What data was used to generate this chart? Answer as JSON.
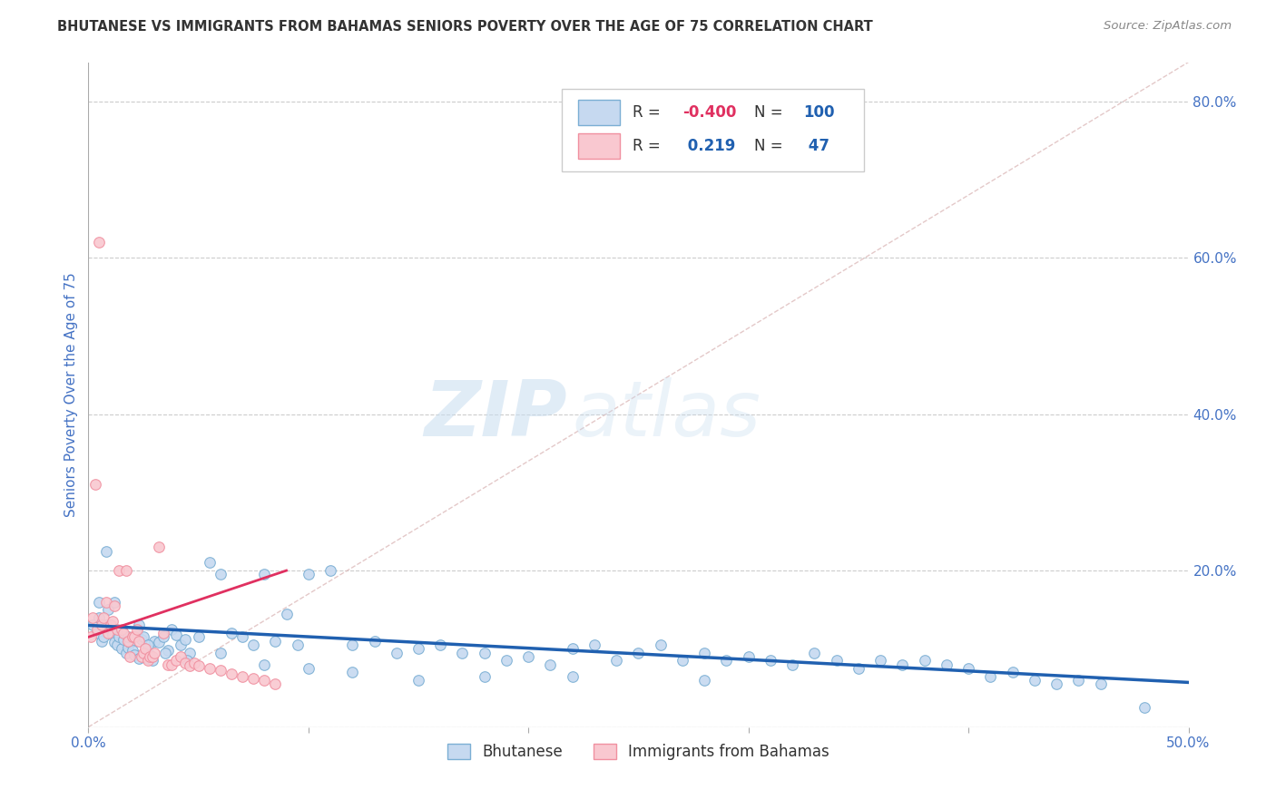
{
  "title": "BHUTANESE VS IMMIGRANTS FROM BAHAMAS SENIORS POVERTY OVER THE AGE OF 75 CORRELATION CHART",
  "source": "Source: ZipAtlas.com",
  "ylabel": "Seniors Poverty Over the Age of 75",
  "xlim": [
    0.0,
    0.5
  ],
  "ylim": [
    0.0,
    0.85
  ],
  "xticks": [
    0.0,
    0.1,
    0.2,
    0.3,
    0.4,
    0.5
  ],
  "yticks_right": [
    0.0,
    0.2,
    0.4,
    0.6,
    0.8
  ],
  "ytick_labels_right": [
    "",
    "20.0%",
    "40.0%",
    "60.0%",
    "80.0%"
  ],
  "xtick_labels": [
    "0.0%",
    "",
    "",
    "",
    "",
    "50.0%"
  ],
  "legend_blue_label": "Bhutanese",
  "legend_pink_label": "Immigrants from Bahamas",
  "R_blue": -0.4,
  "N_blue": 100,
  "R_pink": 0.219,
  "N_pink": 47,
  "watermark_zip": "ZIP",
  "watermark_atlas": "atlas",
  "background_color": "#ffffff",
  "blue_scatter_x": [
    0.002,
    0.004,
    0.005,
    0.006,
    0.007,
    0.008,
    0.009,
    0.01,
    0.011,
    0.012,
    0.013,
    0.014,
    0.015,
    0.016,
    0.017,
    0.018,
    0.019,
    0.02,
    0.021,
    0.022,
    0.023,
    0.024,
    0.025,
    0.026,
    0.027,
    0.028,
    0.029,
    0.03,
    0.032,
    0.034,
    0.036,
    0.038,
    0.04,
    0.042,
    0.044,
    0.046,
    0.05,
    0.055,
    0.06,
    0.065,
    0.07,
    0.075,
    0.08,
    0.085,
    0.09,
    0.095,
    0.1,
    0.11,
    0.12,
    0.13,
    0.14,
    0.15,
    0.16,
    0.17,
    0.18,
    0.19,
    0.2,
    0.21,
    0.22,
    0.23,
    0.24,
    0.25,
    0.26,
    0.27,
    0.28,
    0.29,
    0.3,
    0.31,
    0.32,
    0.33,
    0.34,
    0.35,
    0.36,
    0.37,
    0.38,
    0.39,
    0.4,
    0.41,
    0.42,
    0.43,
    0.44,
    0.45,
    0.46,
    0.005,
    0.008,
    0.012,
    0.018,
    0.023,
    0.027,
    0.035,
    0.045,
    0.06,
    0.08,
    0.1,
    0.12,
    0.15,
    0.18,
    0.22,
    0.28,
    0.48
  ],
  "blue_scatter_y": [
    0.13,
    0.12,
    0.14,
    0.11,
    0.115,
    0.13,
    0.15,
    0.125,
    0.118,
    0.108,
    0.105,
    0.115,
    0.1,
    0.112,
    0.095,
    0.102,
    0.108,
    0.098,
    0.092,
    0.118,
    0.088,
    0.112,
    0.115,
    0.095,
    0.088,
    0.092,
    0.085,
    0.11,
    0.108,
    0.115,
    0.098,
    0.125,
    0.118,
    0.105,
    0.112,
    0.095,
    0.115,
    0.21,
    0.195,
    0.12,
    0.115,
    0.105,
    0.195,
    0.11,
    0.145,
    0.105,
    0.195,
    0.2,
    0.105,
    0.11,
    0.095,
    0.1,
    0.105,
    0.095,
    0.095,
    0.085,
    0.09,
    0.08,
    0.1,
    0.105,
    0.085,
    0.095,
    0.105,
    0.085,
    0.095,
    0.085,
    0.09,
    0.085,
    0.08,
    0.095,
    0.085,
    0.075,
    0.085,
    0.08,
    0.085,
    0.08,
    0.075,
    0.065,
    0.07,
    0.06,
    0.055,
    0.06,
    0.055,
    0.16,
    0.225,
    0.16,
    0.115,
    0.13,
    0.105,
    0.095,
    0.085,
    0.095,
    0.08,
    0.075,
    0.07,
    0.06,
    0.065,
    0.065,
    0.06,
    0.025
  ],
  "pink_scatter_x": [
    0.001,
    0.002,
    0.003,
    0.004,
    0.005,
    0.006,
    0.007,
    0.008,
    0.009,
    0.01,
    0.011,
    0.012,
    0.013,
    0.014,
    0.015,
    0.016,
    0.017,
    0.018,
    0.019,
    0.02,
    0.021,
    0.022,
    0.023,
    0.024,
    0.025,
    0.026,
    0.027,
    0.028,
    0.029,
    0.03,
    0.032,
    0.034,
    0.036,
    0.038,
    0.04,
    0.042,
    0.044,
    0.046,
    0.048,
    0.05,
    0.055,
    0.06,
    0.065,
    0.07,
    0.075,
    0.08,
    0.085
  ],
  "pink_scatter_y": [
    0.115,
    0.14,
    0.31,
    0.125,
    0.62,
    0.13,
    0.14,
    0.16,
    0.12,
    0.13,
    0.135,
    0.155,
    0.125,
    0.2,
    0.125,
    0.12,
    0.2,
    0.11,
    0.09,
    0.115,
    0.115,
    0.125,
    0.11,
    0.09,
    0.095,
    0.1,
    0.085,
    0.09,
    0.09,
    0.095,
    0.23,
    0.12,
    0.08,
    0.08,
    0.085,
    0.09,
    0.082,
    0.078,
    0.082,
    0.078,
    0.075,
    0.072,
    0.068,
    0.065,
    0.062,
    0.06,
    0.055
  ],
  "blue_line_x": [
    0.0,
    0.5
  ],
  "blue_line_y": [
    0.13,
    0.057
  ],
  "pink_line_x": [
    0.0,
    0.09
  ],
  "pink_line_y": [
    0.115,
    0.2
  ]
}
